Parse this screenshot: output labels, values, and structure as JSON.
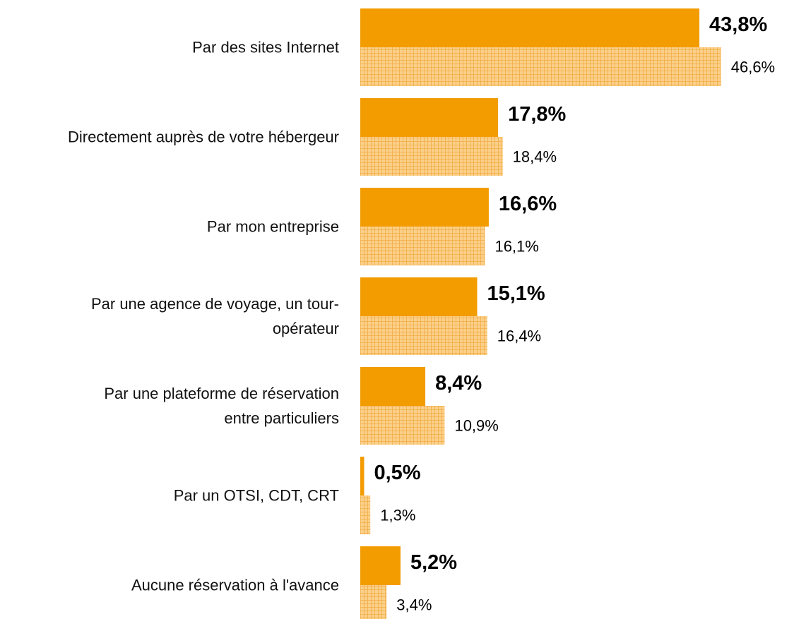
{
  "chart_data": {
    "type": "bar",
    "orientation": "horizontal",
    "categories": [
      "Par des sites Internet",
      "Directement auprès de votre hébergeur",
      "Par mon entreprise",
      "Par une agence de voyage, un tour-\nopérateur",
      "Par une plateforme de réservation\nentre particuliers",
      "Par un OTSI, CDT, CRT",
      "Aucune réservation à l'avance"
    ],
    "series": [
      {
        "color": "#f39c00",
        "pattern": "solid",
        "values": [
          43.8,
          17.8,
          16.6,
          15.1,
          8.4,
          0.5,
          5.2
        ],
        "value_labels": [
          "43,8%",
          "17,8%",
          "16,6%",
          "15,1%",
          "8,4%",
          "0,5%",
          "5,2%"
        ]
      },
      {
        "color": "#fcd08a",
        "pattern": "grid",
        "values": [
          46.6,
          18.4,
          16.1,
          16.4,
          10.9,
          1.3,
          3.4
        ],
        "value_labels": [
          "46,6%",
          "18,4%",
          "16,1%",
          "16,4%",
          "10,9%",
          "1,3%",
          "3,4%"
        ]
      }
    ],
    "xlim": [
      0,
      50
    ]
  }
}
